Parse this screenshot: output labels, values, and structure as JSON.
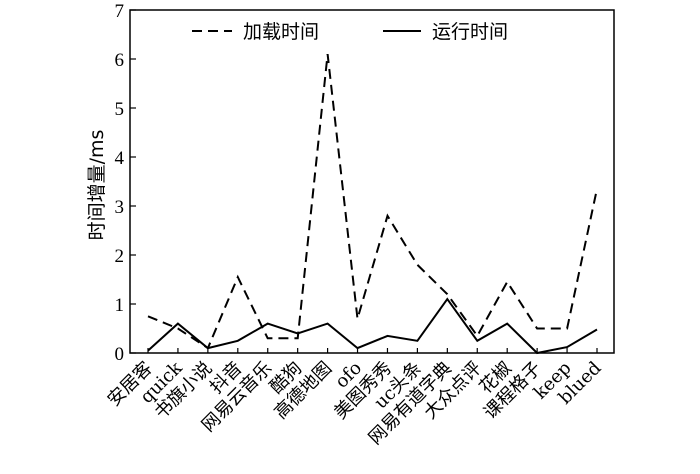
{
  "chart_data": {
    "type": "line",
    "title": "",
    "xlabel": "",
    "ylabel": "时间增量/ms",
    "ylim": [
      0,
      7
    ],
    "yticks": [
      0,
      1,
      2,
      3,
      4,
      5,
      6,
      7
    ],
    "grid": false,
    "legend_position": "top",
    "categories": [
      "安居客",
      "quick",
      "书旗小说",
      "抖音",
      "网易云音乐",
      "酷狗",
      "高德地图",
      "ofo",
      "美图秀秀",
      "uc头条",
      "网易有道字典",
      "大众点评",
      "花椒",
      "课程格子",
      "keep",
      "blued"
    ],
    "series": [
      {
        "name": "加载时间",
        "style": "dashed",
        "color": "#000000",
        "values": [
          0.75,
          0.5,
          0.1,
          1.55,
          0.3,
          0.3,
          6.1,
          0.7,
          2.8,
          1.8,
          1.2,
          0.35,
          1.45,
          0.5,
          0.5,
          3.35
        ]
      },
      {
        "name": "运行时间",
        "style": "solid",
        "color": "#000000",
        "values": [
          0.05,
          0.6,
          0.1,
          0.25,
          0.6,
          0.4,
          0.6,
          0.1,
          0.35,
          0.25,
          1.1,
          0.25,
          0.6,
          0.0,
          0.12,
          0.48
        ]
      }
    ]
  }
}
